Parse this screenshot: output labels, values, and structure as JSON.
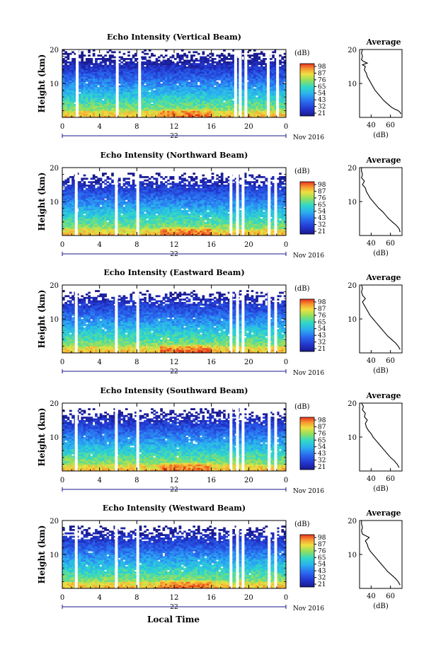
{
  "figure": {
    "bottom_xlabel": "Local Time"
  },
  "chart_data": [
    {
      "type": "heatmap",
      "beam": "vertical",
      "title": "Echo Intensity (Vertical Beam)",
      "ylabel": "Height (km)",
      "xlim": [
        0,
        24
      ],
      "ylim": [
        0,
        20
      ],
      "xticks": [
        "0",
        "4",
        "8",
        "12",
        "16",
        "20",
        "0"
      ],
      "yticks": [
        "10",
        "20"
      ],
      "date_label": "22",
      "month_label": "Nov 2016",
      "colorbar": {
        "label": "(dB)",
        "ticks": [
          "98",
          "87",
          "76",
          "65",
          "54",
          "43",
          "32",
          "21"
        ],
        "min": 21,
        "max": 98
      },
      "data_gaps_hours": [
        1.6,
        5.9,
        8.3,
        18.6,
        19.1,
        19.7,
        22.1,
        23.1
      ],
      "profile": {
        "title": "Average",
        "xlabel": "(dB)",
        "xticks": [
          "40",
          "60"
        ],
        "yticks": [
          "10",
          "20"
        ],
        "xlim": [
          28,
          72
        ],
        "height": [
          1.0,
          1.5,
          2.0,
          2.5,
          3.0,
          3.5,
          4.0,
          4.5,
          5.0,
          6.0,
          7.0,
          8.0,
          9.0,
          10.0,
          11.0,
          12.0,
          13.0,
          14.0,
          15.0,
          15.5,
          16.0,
          16.5,
          17.0,
          18.0,
          19.0,
          20.0
        ],
        "value": [
          71,
          70,
          68,
          64,
          61,
          59,
          57,
          55,
          53,
          50,
          47,
          44,
          42,
          40,
          38,
          36,
          35,
          33,
          34,
          31,
          36,
          32,
          30,
          31,
          30,
          31
        ]
      }
    },
    {
      "type": "heatmap",
      "beam": "northward",
      "title": "Echo Intensity (Northward Beam)",
      "ylabel": "Height (km)",
      "xlim": [
        0,
        24
      ],
      "ylim": [
        0,
        20
      ],
      "xticks": [
        "0",
        "4",
        "8",
        "12",
        "16",
        "20",
        "0"
      ],
      "yticks": [
        "10",
        "20"
      ],
      "date_label": "22",
      "month_label": "Nov 2016",
      "colorbar": {
        "label": "(dB)",
        "ticks": [
          "98",
          "87",
          "76",
          "65",
          "54",
          "43",
          "32",
          "21"
        ],
        "min": 21,
        "max": 98
      },
      "data_gaps_hours": [
        1.5,
        5.8,
        8.1,
        18.1,
        18.8,
        19.4,
        22.2,
        22.9
      ],
      "profile": {
        "title": "Average",
        "xlabel": "(dB)",
        "xticks": [
          "40",
          "60"
        ],
        "yticks": [
          "10",
          "20"
        ],
        "xlim": [
          28,
          72
        ],
        "height": [
          1.0,
          2.0,
          3.0,
          4.0,
          5.0,
          6.0,
          7.0,
          8.0,
          9.0,
          10.0,
          11.0,
          12.0,
          13.0,
          14.0,
          15.0,
          16.0,
          17.0,
          18.0,
          19.0,
          20.0
        ],
        "value": [
          70,
          69,
          66,
          62,
          58,
          55,
          52,
          48,
          45,
          42,
          39,
          37,
          35,
          34,
          31,
          33,
          30,
          31,
          30,
          30
        ]
      }
    },
    {
      "type": "heatmap",
      "beam": "eastward",
      "title": "Echo Intensity (Eastward Beam)",
      "ylabel": "Height (km)",
      "xlim": [
        0,
        24
      ],
      "ylim": [
        0,
        20
      ],
      "xticks": [
        "0",
        "4",
        "8",
        "12",
        "16",
        "20",
        "0"
      ],
      "yticks": [
        "10",
        "20"
      ],
      "date_label": "22",
      "month_label": "Nov 2016",
      "colorbar": {
        "label": "(dB)",
        "ticks": [
          "98",
          "87",
          "76",
          "65",
          "54",
          "43",
          "32",
          "21"
        ],
        "min": 21,
        "max": 98
      },
      "data_gaps_hours": [
        1.5,
        5.8,
        8.1,
        18.1,
        18.8,
        19.4,
        22.2,
        22.9
      ],
      "profile": {
        "title": "Average",
        "xlabel": "(dB)",
        "xticks": [
          "40",
          "60"
        ],
        "yticks": [
          "10",
          "20"
        ],
        "xlim": [
          28,
          72
        ],
        "height": [
          1.0,
          2.0,
          3.0,
          4.0,
          5.0,
          6.0,
          7.0,
          8.0,
          9.0,
          10.0,
          11.0,
          12.0,
          13.0,
          14.0,
          15.0,
          16.0,
          17.0,
          18.0,
          19.0,
          20.0
        ],
        "value": [
          70,
          68,
          65,
          61,
          57,
          54,
          51,
          48,
          45,
          42,
          39,
          37,
          35,
          33,
          31,
          34,
          31,
          30,
          31,
          30
        ]
      }
    },
    {
      "type": "heatmap",
      "beam": "southward",
      "title": "Echo Intensity (Southward Beam)",
      "ylabel": "Height (km)",
      "xlim": [
        0,
        24
      ],
      "ylim": [
        0,
        20
      ],
      "xticks": [
        "0",
        "4",
        "8",
        "12",
        "16",
        "20",
        "0"
      ],
      "yticks": [
        "10",
        "20"
      ],
      "date_label": "22",
      "month_label": "Nov 2016",
      "colorbar": {
        "label": "(dB)",
        "ticks": [
          "98",
          "87",
          "76",
          "65",
          "54",
          "43",
          "32",
          "21"
        ],
        "min": 21,
        "max": 98
      },
      "data_gaps_hours": [
        1.5,
        5.8,
        8.1,
        18.1,
        18.8,
        19.4,
        22.2,
        22.9
      ],
      "profile": {
        "title": "Average",
        "xlabel": "(dB)",
        "xticks": [
          "40",
          "60"
        ],
        "yticks": [
          "10",
          "20"
        ],
        "xlim": [
          28,
          72
        ],
        "height": [
          1.0,
          2.0,
          3.0,
          4.0,
          5.0,
          6.0,
          7.0,
          8.0,
          9.0,
          10.0,
          11.0,
          12.0,
          13.0,
          14.0,
          15.0,
          16.0,
          17.0,
          18.0,
          19.0,
          20.0
        ],
        "value": [
          69,
          67,
          64,
          60,
          57,
          54,
          51,
          48,
          45,
          42,
          40,
          37,
          35,
          34,
          36,
          33,
          34,
          31,
          32,
          30
        ]
      }
    },
    {
      "type": "heatmap",
      "beam": "westward",
      "title": "Echo Intensity (Westward Beam)",
      "ylabel": "Height (km)",
      "xlim": [
        0,
        24
      ],
      "ylim": [
        0,
        20
      ],
      "xticks": [
        "0",
        "4",
        "8",
        "12",
        "16",
        "20",
        "0"
      ],
      "yticks": [
        "10",
        "20"
      ],
      "date_label": "22",
      "month_label": "Nov 2016",
      "colorbar": {
        "label": "(dB)",
        "ticks": [
          "98",
          "87",
          "76",
          "65",
          "54",
          "43",
          "32",
          "21"
        ],
        "min": 21,
        "max": 98
      },
      "data_gaps_hours": [
        1.5,
        5.8,
        8.1,
        18.1,
        18.8,
        19.4,
        22.2,
        22.9
      ],
      "profile": {
        "title": "Average",
        "xlabel": "(dB)",
        "xticks": [
          "40",
          "60"
        ],
        "yticks": [
          "10",
          "20"
        ],
        "xlim": [
          28,
          72
        ],
        "height": [
          1.0,
          2.0,
          3.0,
          4.0,
          5.0,
          6.0,
          7.0,
          8.0,
          9.0,
          10.0,
          11.0,
          12.0,
          13.0,
          14.0,
          15.0,
          16.0,
          17.0,
          18.0,
          19.0,
          20.0
        ],
        "value": [
          70,
          68,
          65,
          61,
          57,
          54,
          51,
          48,
          45,
          42,
          39,
          37,
          36,
          34,
          38,
          31,
          30,
          31,
          30,
          30
        ]
      }
    }
  ]
}
